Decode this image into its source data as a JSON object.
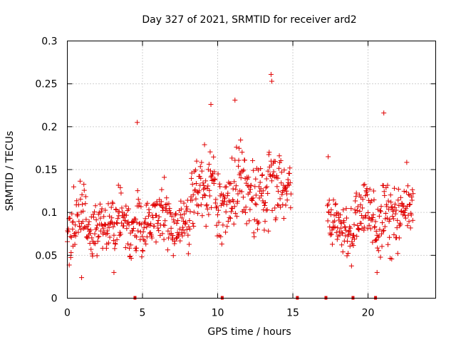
{
  "chart_data": {
    "type": "scatter",
    "title": "Day 327 of 2021, SRMTID for receiver ard2",
    "xlabel": "GPS time / hours",
    "ylabel": "SRMTID / TECUs",
    "xlim": [
      0,
      24.5
    ],
    "ylim": [
      0,
      0.3
    ],
    "xticks": [
      0,
      5,
      10,
      15,
      20
    ],
    "xtick_labels": [
      "0",
      "5",
      "10",
      "15",
      "20"
    ],
    "yticks": [
      0,
      0.05,
      0.1,
      0.15,
      0.2,
      0.25,
      0.3
    ],
    "ytick_labels": [
      "0",
      "0.05",
      "0.1",
      "0.15",
      "0.2",
      "0.25",
      "0.3"
    ],
    "grid": true,
    "marker": "+",
    "color": "#e00000",
    "series": [
      {
        "name": "SRMTID",
        "segments": [
          {
            "start": 0.0,
            "end": 4.6,
            "step": 0.025,
            "base": 0.082,
            "amp": 0.024,
            "peakAt": [
              [
                1.0,
                0.045
              ],
              [
                2.0,
                0.04
              ]
            ]
          },
          {
            "start": 4.6,
            "end": 8.2,
            "step": 0.025,
            "base": 0.088,
            "amp": 0.022,
            "peakAt": [
              [
                4.6,
                0.05
              ],
              [
                7.7,
                0.035
              ]
            ]
          },
          {
            "start": 8.2,
            "end": 14.9,
            "step": 0.025,
            "base": 0.118,
            "amp": 0.03,
            "peakAt": [
              [
                9.6,
                0.06
              ],
              [
                11.5,
                0.06
              ],
              [
                13.5,
                0.07
              ]
            ]
          },
          {
            "start": 17.3,
            "end": 23.0,
            "step": 0.025,
            "base": 0.088,
            "amp": 0.024,
            "peakAt": [
              [
                20.0,
                0.04
              ],
              [
                21.1,
                0.07
              ],
              [
                22.6,
                0.04
              ]
            ]
          }
        ],
        "outliers": [
          {
            "x": 4.65,
            "y": 0.205
          },
          {
            "x": 9.55,
            "y": 0.226
          },
          {
            "x": 11.15,
            "y": 0.231
          },
          {
            "x": 13.55,
            "y": 0.261
          },
          {
            "x": 13.6,
            "y": 0.253
          },
          {
            "x": 21.05,
            "y": 0.216
          },
          {
            "x": 17.35,
            "y": 0.165
          },
          {
            "x": 0.95,
            "y": 0.024
          },
          {
            "x": 3.1,
            "y": 0.03
          },
          {
            "x": 20.6,
            "y": 0.03
          }
        ]
      }
    ],
    "data_gap_markers": [
      4.5,
      10.3,
      15.3,
      17.2,
      19.0,
      20.5
    ]
  }
}
